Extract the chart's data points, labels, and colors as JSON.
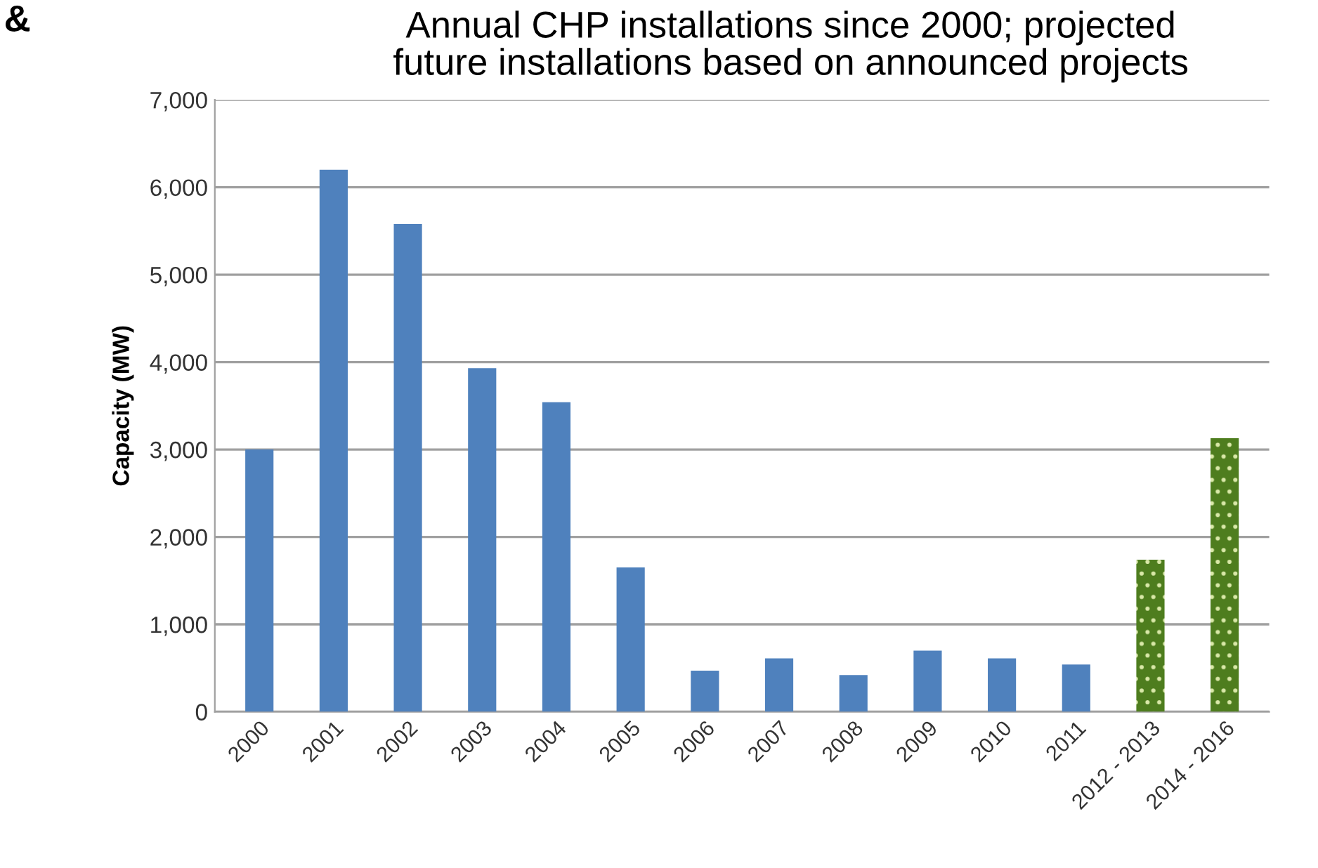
{
  "chart_data": {
    "type": "bar",
    "title": "Annual CHP installations since 2000; projected\nfuture installations based on announced projects",
    "ylabel": "Capacity (MW)",
    "categories": [
      "2000",
      "2001",
      "2002",
      "2003",
      "2004",
      "2005",
      "2006",
      "2007",
      "2008",
      "2009",
      "2010",
      "2011",
      "2012 - 2013",
      "2014 - 2016"
    ],
    "values": [
      3000,
      6200,
      5580,
      3930,
      3540,
      1650,
      470,
      610,
      420,
      700,
      610,
      540,
      1740,
      3130
    ],
    "colors": [
      "#4f81bd",
      "#4f81bd",
      "#4f81bd",
      "#4f81bd",
      "#4f81bd",
      "#4f81bd",
      "#4f81bd",
      "#4f81bd",
      "#4f81bd",
      "#4f81bd",
      "#4f81bd",
      "#4f81bd",
      "#4e7d1e",
      "#4e7d1e"
    ],
    "ylim": [
      0,
      7000
    ],
    "yticks": [
      {
        "value": 0,
        "label": "0"
      },
      {
        "value": 1000,
        "label": "1,000"
      },
      {
        "value": 2000,
        "label": "2,000"
      },
      {
        "value": 3000,
        "label": "3,000"
      },
      {
        "value": 4000,
        "label": "4,000"
      },
      {
        "value": 5000,
        "label": "5,000"
      },
      {
        "value": 6000,
        "label": "6,000"
      },
      {
        "value": 7000,
        "label": "7,000"
      }
    ],
    "grid": "y",
    "annotations": [
      "&"
    ]
  }
}
